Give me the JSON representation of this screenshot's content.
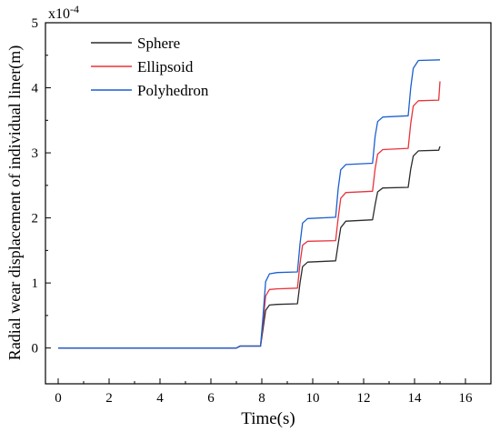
{
  "chart_data": {
    "type": "line",
    "title": "",
    "xlabel": "Time(s)",
    "ylabel": "Radial wear displacement of individual liner(m)",
    "y_multiplier_label": "x10",
    "y_multiplier_exponent": "-4",
    "xlim": [
      -0.5,
      17
    ],
    "ylim": [
      -0.55,
      5
    ],
    "x_ticks": [
      0,
      2,
      4,
      6,
      8,
      10,
      12,
      14,
      16
    ],
    "y_ticks": [
      0,
      1,
      2,
      3,
      4,
      5
    ],
    "grid": false,
    "legend_position": "top-left",
    "series": [
      {
        "name": "Sphere",
        "color": "#2b2b2b",
        "points": [
          [
            0,
            0
          ],
          [
            7,
            0
          ],
          [
            7.15,
            0.03
          ],
          [
            7.95,
            0.03
          ],
          [
            8.05,
            0.3
          ],
          [
            8.15,
            0.58
          ],
          [
            8.3,
            0.66
          ],
          [
            8.6,
            0.67
          ],
          [
            9.4,
            0.68
          ],
          [
            9.5,
            1.0
          ],
          [
            9.6,
            1.25
          ],
          [
            9.8,
            1.32
          ],
          [
            10.9,
            1.34
          ],
          [
            11.0,
            1.6
          ],
          [
            11.1,
            1.85
          ],
          [
            11.3,
            1.95
          ],
          [
            12.35,
            1.97
          ],
          [
            12.45,
            2.2
          ],
          [
            12.55,
            2.4
          ],
          [
            12.75,
            2.46
          ],
          [
            13.75,
            2.47
          ],
          [
            13.85,
            2.75
          ],
          [
            13.95,
            2.95
          ],
          [
            14.15,
            3.03
          ],
          [
            14.95,
            3.04
          ],
          [
            15.0,
            3.1
          ]
        ]
      },
      {
        "name": "Ellipsoid",
        "color": "#e8333a",
        "points": [
          [
            0,
            0
          ],
          [
            7,
            0
          ],
          [
            7.15,
            0.03
          ],
          [
            7.95,
            0.03
          ],
          [
            8.05,
            0.4
          ],
          [
            8.15,
            0.8
          ],
          [
            8.3,
            0.9
          ],
          [
            8.6,
            0.91
          ],
          [
            9.4,
            0.92
          ],
          [
            9.5,
            1.3
          ],
          [
            9.6,
            1.58
          ],
          [
            9.8,
            1.64
          ],
          [
            10.9,
            1.65
          ],
          [
            11.0,
            2.0
          ],
          [
            11.1,
            2.3
          ],
          [
            11.3,
            2.39
          ],
          [
            12.35,
            2.41
          ],
          [
            12.45,
            2.75
          ],
          [
            12.55,
            2.98
          ],
          [
            12.75,
            3.05
          ],
          [
            13.75,
            3.07
          ],
          [
            13.85,
            3.45
          ],
          [
            13.95,
            3.72
          ],
          [
            14.15,
            3.8
          ],
          [
            14.95,
            3.81
          ],
          [
            15.0,
            4.1
          ]
        ]
      },
      {
        "name": "Polyhedron",
        "color": "#1a5fd0",
        "points": [
          [
            0,
            0
          ],
          [
            7,
            0
          ],
          [
            7.15,
            0.03
          ],
          [
            7.95,
            0.03
          ],
          [
            8.05,
            0.5
          ],
          [
            8.15,
            1.02
          ],
          [
            8.3,
            1.14
          ],
          [
            8.6,
            1.16
          ],
          [
            9.4,
            1.17
          ],
          [
            9.5,
            1.6
          ],
          [
            9.6,
            1.92
          ],
          [
            9.8,
            1.99
          ],
          [
            10.9,
            2.01
          ],
          [
            11.0,
            2.45
          ],
          [
            11.1,
            2.74
          ],
          [
            11.3,
            2.82
          ],
          [
            12.35,
            2.84
          ],
          [
            12.45,
            3.25
          ],
          [
            12.55,
            3.48
          ],
          [
            12.75,
            3.55
          ],
          [
            13.75,
            3.57
          ],
          [
            13.85,
            4.0
          ],
          [
            13.95,
            4.3
          ],
          [
            14.15,
            4.42
          ],
          [
            15.0,
            4.43
          ]
        ]
      }
    ]
  }
}
